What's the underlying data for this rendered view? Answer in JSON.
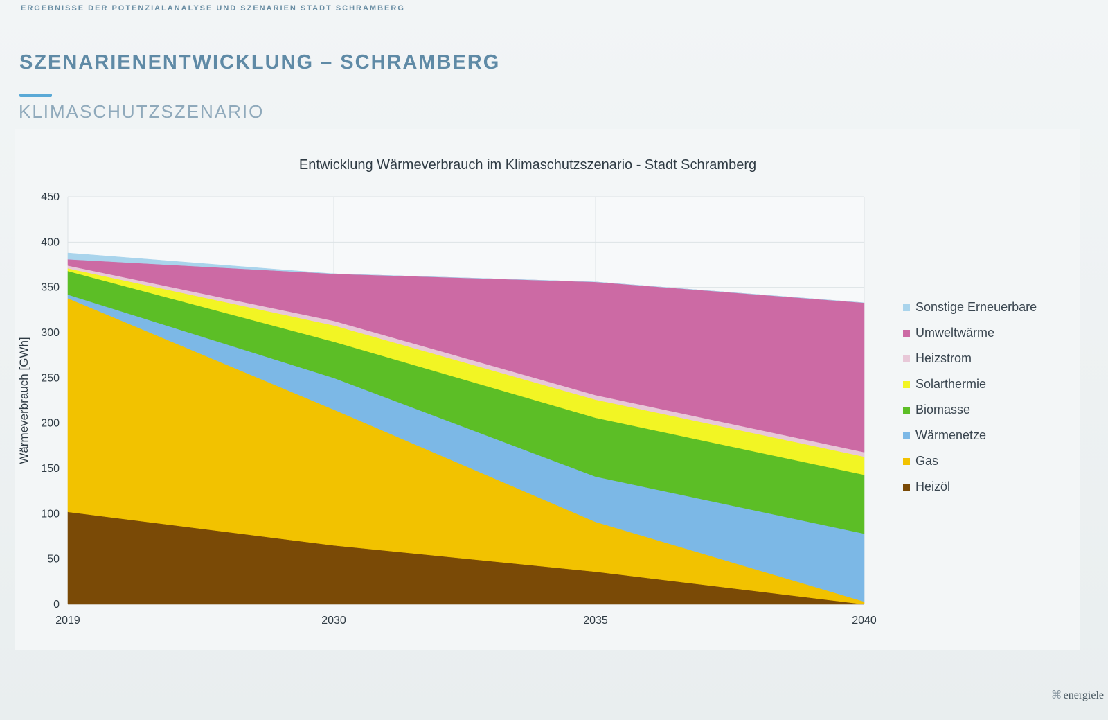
{
  "header": {
    "eyebrow": "ERGEBNISSE DER POTENZIALANALYSE UND SZENARIEN STADT SCHRAMBERG",
    "title": "SZENARIENENTWICKLUNG – SCHRAMBERG",
    "subtitle": "KLIMASCHUTZSZENARIO"
  },
  "brand": {
    "icon": "grid-logo-icon",
    "text": "energiele"
  },
  "chart_data": {
    "type": "area",
    "title": "Entwicklung Wärmeverbrauch im Klimaschutzszenario - Stadt Schramberg",
    "xlabel": "",
    "ylabel": "Wärmeverbrauch [GWh]",
    "x": [
      "2019",
      "2030",
      "2035",
      "2040"
    ],
    "ylim": [
      0,
      450
    ],
    "yticks": [
      0,
      50,
      100,
      150,
      200,
      250,
      300,
      350,
      400,
      450
    ],
    "grid": true,
    "stacked": true,
    "legend_position": "right",
    "series": [
      {
        "name": "Heizöl",
        "color": "#7a4a06",
        "values": [
          102,
          65,
          36,
          0
        ]
      },
      {
        "name": "Gas",
        "color": "#f2c200",
        "values": [
          236,
          150,
          55,
          3
        ]
      },
      {
        "name": "Wärmenetze",
        "color": "#7cb8e6",
        "values": [
          4,
          35,
          50,
          75
        ]
      },
      {
        "name": "Biomasse",
        "color": "#5cbe26",
        "values": [
          26,
          40,
          65,
          65
        ]
      },
      {
        "name": "Solarthermie",
        "color": "#f2f524",
        "values": [
          3,
          18,
          20,
          20
        ]
      },
      {
        "name": "Heizstrom",
        "color": "#e8c8d8",
        "values": [
          3,
          5,
          5,
          5
        ]
      },
      {
        "name": "Umweltwärme",
        "color": "#cc6aa4",
        "values": [
          7,
          52,
          125,
          165
        ]
      },
      {
        "name": "Sonstige Erneuerbare",
        "color": "#a9d4ec",
        "values": [
          7,
          0,
          0,
          0
        ]
      }
    ],
    "legend_order": [
      "Sonstige Erneuerbare",
      "Umweltwärme",
      "Heizstrom",
      "Solarthermie",
      "Biomasse",
      "Wärmenetze",
      "Gas",
      "Heizöl"
    ]
  }
}
